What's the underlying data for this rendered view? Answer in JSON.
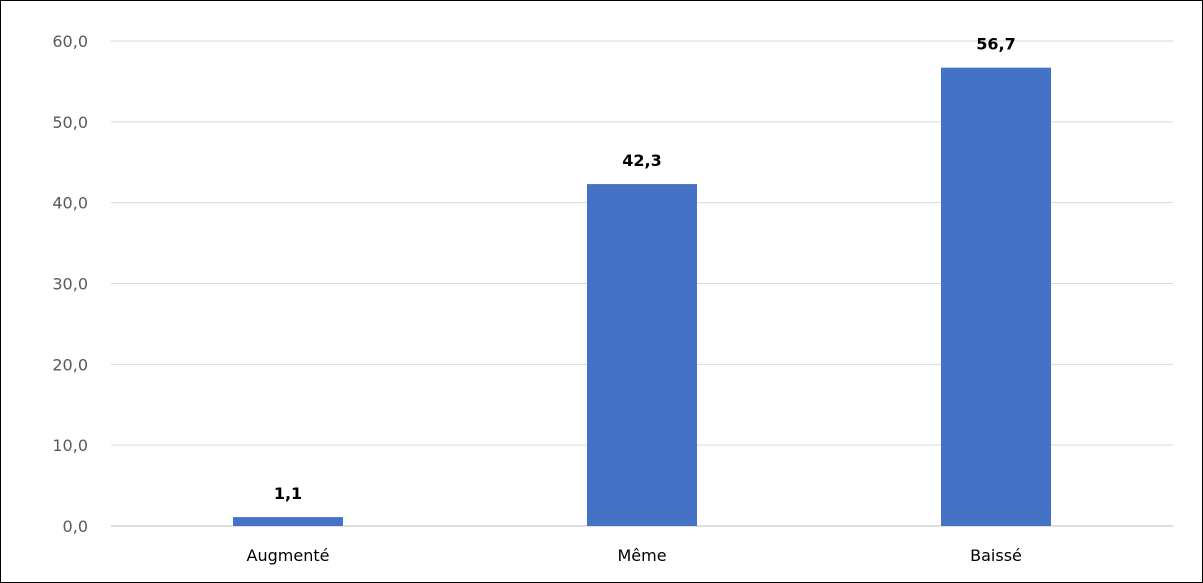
{
  "chart_data": {
    "type": "bar",
    "categories": [
      "Augmenté",
      "Même",
      "Baissé"
    ],
    "values": [
      1.1,
      42.3,
      56.7
    ],
    "value_labels": [
      "1,1",
      "42,3",
      "56,7"
    ],
    "title": "",
    "xlabel": "",
    "ylabel": "",
    "ylim": [
      0,
      60
    ],
    "yticks": [
      0,
      10,
      20,
      30,
      40,
      50,
      60
    ],
    "ytick_labels": [
      "0,0",
      "10,0",
      "20,0",
      "30,0",
      "40,0",
      "50,0",
      "60,0"
    ],
    "grid": true,
    "legend": "none",
    "colors": {
      "bar": "#4472C4",
      "grid": "#D9D9D9",
      "axis": "#BFBFBF",
      "tick_text": "#595959",
      "label_text": "#000000"
    }
  }
}
